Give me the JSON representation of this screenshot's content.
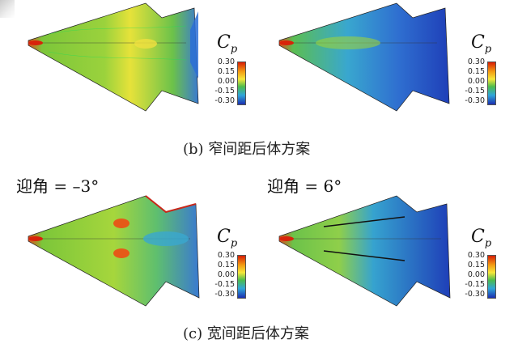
{
  "figure": {
    "panels": [
      {
        "symbol": "C",
        "sub": "p",
        "scheme": "green",
        "ticks": [
          "0.30",
          "0.15",
          "0.00",
          "-0.15",
          "-0.30"
        ]
      },
      {
        "symbol": "C",
        "sub": "p",
        "scheme": "blue",
        "ticks": [
          "0.30",
          "0.15",
          "0.00",
          "-0.15",
          "-0.30"
        ]
      },
      {
        "symbol": "C",
        "sub": "p",
        "scheme": "green",
        "ticks": [
          "0.30",
          "0.15",
          "0.00",
          "-0.15",
          "-0.30"
        ]
      },
      {
        "symbol": "C",
        "sub": "p",
        "scheme": "blue",
        "ticks": [
          "0.30",
          "0.15",
          "0.00",
          "-0.15",
          "-0.30"
        ]
      }
    ],
    "captions": {
      "b": "(b) 窄间距后体方案",
      "c": "(c) 宽间距后体方案"
    },
    "angles": {
      "left": "迎角 = –3°",
      "right": "迎角 = 6°"
    },
    "colorscale": [
      "#d81e05",
      "#f39c12",
      "#f6e73a",
      "#4cbc4c",
      "#2fa6d9",
      "#1b2fb0"
    ]
  }
}
